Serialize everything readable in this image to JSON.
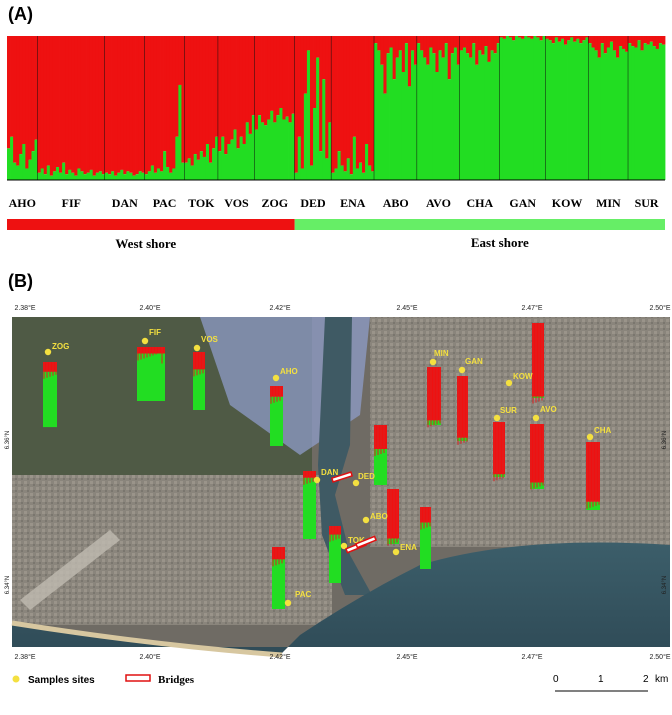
{
  "panel_a_label": "(A)",
  "panel_b_label": "(B)",
  "chart_data": {
    "type": "bar",
    "stacked": true,
    "colors": {
      "west": "#ee1111",
      "east": "#22dd22"
    },
    "populations": [
      {
        "name": "AHO",
        "n": 10,
        "green": [
          0.22,
          0.3,
          0.12,
          0.1,
          0.18,
          0.25,
          0.08,
          0.14,
          0.2,
          0.28
        ]
      },
      {
        "name": "FIF",
        "n": 22,
        "green": [
          0.05,
          0.08,
          0.04,
          0.1,
          0.03,
          0.06,
          0.09,
          0.05,
          0.12,
          0.04,
          0.07,
          0.05,
          0.03,
          0.08,
          0.06,
          0.04,
          0.05,
          0.07,
          0.03,
          0.05,
          0.06,
          0.04
        ]
      },
      {
        "name": "DAN",
        "n": 13,
        "green": [
          0.05,
          0.04,
          0.06,
          0.03,
          0.05,
          0.07,
          0.04,
          0.06,
          0.05,
          0.03,
          0.04,
          0.06,
          0.05
        ]
      },
      {
        "name": "PAC",
        "n": 13,
        "green": [
          0.04,
          0.06,
          0.1,
          0.05,
          0.08,
          0.06,
          0.2,
          0.09,
          0.05,
          0.08,
          0.3,
          0.66,
          0.12
        ]
      },
      {
        "name": "TOK",
        "n": 11,
        "green": [
          0.12,
          0.15,
          0.1,
          0.18,
          0.14,
          0.2,
          0.16,
          0.25,
          0.12,
          0.22,
          0.3
        ]
      },
      {
        "name": "VOS",
        "n": 12,
        "green": [
          0.2,
          0.3,
          0.18,
          0.25,
          0.28,
          0.35,
          0.22,
          0.3,
          0.25,
          0.4,
          0.32,
          0.45
        ]
      },
      {
        "name": "ZOG",
        "n": 13,
        "green": [
          0.35,
          0.45,
          0.4,
          0.38,
          0.42,
          0.48,
          0.4,
          0.45,
          0.5,
          0.42,
          0.44,
          0.4,
          0.46
        ]
      },
      {
        "name": "DED",
        "n": 12,
        "green": [
          0.05,
          0.3,
          0.08,
          0.6,
          0.9,
          0.1,
          0.5,
          0.85,
          0.2,
          0.7,
          0.15,
          0.4
        ]
      },
      {
        "name": "ENA",
        "n": 14,
        "green": [
          0.05,
          0.08,
          0.2,
          0.1,
          0.06,
          0.15,
          0.04,
          0.3,
          0.08,
          0.12,
          0.05,
          0.25,
          0.1,
          0.06
        ]
      },
      {
        "name": "ABO",
        "n": 14,
        "green": [
          0.95,
          0.9,
          0.8,
          0.6,
          0.88,
          0.92,
          0.7,
          0.85,
          0.9,
          0.75,
          0.95,
          0.65,
          0.9,
          0.8
        ]
      },
      {
        "name": "AVO",
        "n": 14,
        "green": [
          0.95,
          0.9,
          0.85,
          0.8,
          0.92,
          0.88,
          0.75,
          0.9,
          0.85,
          0.95,
          0.7,
          0.88,
          0.92,
          0.8
        ]
      },
      {
        "name": "CHA",
        "n": 13,
        "green": [
          0.9,
          0.92,
          0.88,
          0.85,
          0.95,
          0.8,
          0.9,
          0.87,
          0.93,
          0.82,
          0.9,
          0.88,
          0.95
        ]
      },
      {
        "name": "GAN",
        "n": 15,
        "green": [
          0.99,
          0.98,
          1.0,
          0.99,
          0.97,
          1.0,
          0.99,
          0.98,
          1.0,
          0.99,
          0.98,
          1.0,
          0.99,
          0.97,
          1.0
        ]
      },
      {
        "name": "KOW",
        "n": 14,
        "green": [
          0.98,
          0.97,
          0.95,
          0.99,
          0.96,
          0.98,
          0.94,
          0.97,
          0.99,
          0.96,
          0.98,
          0.95,
          0.97,
          0.99
        ]
      },
      {
        "name": "MIN",
        "n": 13,
        "green": [
          0.95,
          0.92,
          0.9,
          0.85,
          0.95,
          0.88,
          0.92,
          0.96,
          0.9,
          0.85,
          0.93,
          0.91,
          0.89
        ]
      },
      {
        "name": "SUR",
        "n": 12,
        "green": [
          0.95,
          0.93,
          0.92,
          0.97,
          0.9,
          0.95,
          0.94,
          0.96,
          0.93,
          0.91,
          0.95,
          0.94
        ]
      }
    ],
    "shore_labels": {
      "west": "West shore",
      "east": "East shore"
    }
  },
  "map": {
    "x_ticks": [
      "2.38°E",
      "2.40°E",
      "2.42°E",
      "2.45°E",
      "2.47°E",
      "2.50°E"
    ],
    "y_ticks": [
      "6.36°N",
      "6.34°N"
    ],
    "sites": [
      {
        "name": "ZOG",
        "green": 0.85
      },
      {
        "name": "FIF",
        "green": 0.88
      },
      {
        "name": "VOS",
        "green": 0.7
      },
      {
        "name": "AHO",
        "green": 0.82
      },
      {
        "name": "MIN",
        "green": 0.08
      },
      {
        "name": "GAN",
        "green": 0.05
      },
      {
        "name": "KOW",
        "green": 0.02
      },
      {
        "name": "SUR",
        "green": 0.05
      },
      {
        "name": "AVO",
        "green": 0.1
      },
      {
        "name": "CHA",
        "green": 0.12
      },
      {
        "name": "DAN",
        "green": 0.9
      },
      {
        "name": "DED",
        "green": 0.6
      },
      {
        "name": "ABO",
        "green": 0.1
      },
      {
        "name": "TOK",
        "green": 0.85
      },
      {
        "name": "ENA",
        "green": 0.75
      },
      {
        "name": "PAC",
        "green": 0.8
      }
    ],
    "legend": {
      "samples": "Samples sites",
      "bridges": "Bridges"
    },
    "scale": {
      "labels": [
        "0",
        "1",
        "2"
      ],
      "unit": "km"
    }
  }
}
